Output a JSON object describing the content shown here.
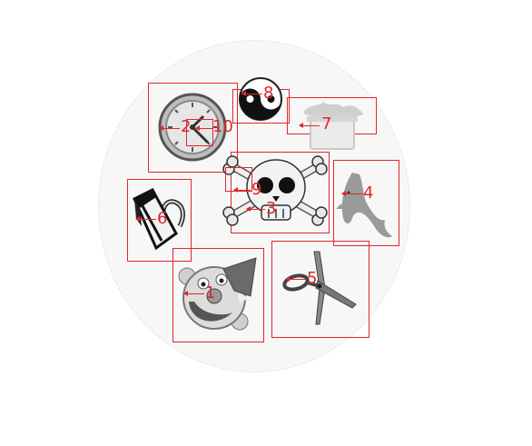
{
  "canvas": {
    "background": "#ffffff",
    "disc_color": "#f7f7f7"
  },
  "accent_color": "#e0262a",
  "markers": [
    {
      "id": "1",
      "label": "1",
      "icon": "clown-face-icon"
    },
    {
      "id": "2",
      "label": "2",
      "icon": "wall-clock-icon"
    },
    {
      "id": "3",
      "label": "3",
      "icon": "skull-crossbones-icon"
    },
    {
      "id": "4",
      "label": "4",
      "icon": "dolphin-icon"
    },
    {
      "id": "5",
      "label": "5",
      "icon": "scissors-icon"
    },
    {
      "id": "6",
      "label": "6",
      "icon": "padlock-icon"
    },
    {
      "id": "7",
      "label": "7",
      "icon": "steaming-pot-icon"
    },
    {
      "id": "8",
      "label": "8",
      "icon": "yin-yang-icon"
    },
    {
      "id": "9",
      "label": "9",
      "icon": "skull-eye-patch-icon"
    },
    {
      "id": "10",
      "label": "10",
      "icon": "clock-hands-icon"
    }
  ]
}
